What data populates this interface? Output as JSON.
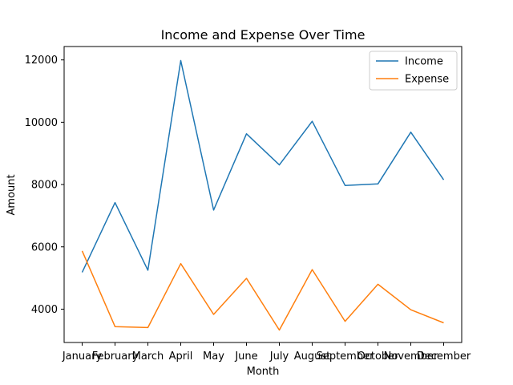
{
  "chart_data": {
    "type": "line",
    "title": "Income and Expense Over Time",
    "xlabel": "Month",
    "ylabel": "Amount",
    "categories": [
      "January",
      "February",
      "March",
      "April",
      "May",
      "June",
      "July",
      "August",
      "September",
      "October",
      "November",
      "December"
    ],
    "series": [
      {
        "name": "Income",
        "color": "#1f77b4",
        "values": [
          5180,
          7420,
          5250,
          11980,
          7180,
          9630,
          8630,
          10030,
          7970,
          8020,
          9680,
          8150
        ]
      },
      {
        "name": "Expense",
        "color": "#ff7f0e",
        "values": [
          5870,
          3440,
          3410,
          5460,
          3830,
          4990,
          3330,
          5270,
          3610,
          4800,
          3980,
          3560
        ]
      }
    ],
    "ylim": [
      2930,
      12430
    ],
    "yticks": [
      4000,
      6000,
      8000,
      10000,
      12000
    ],
    "grid": false,
    "legend": "top-right"
  }
}
